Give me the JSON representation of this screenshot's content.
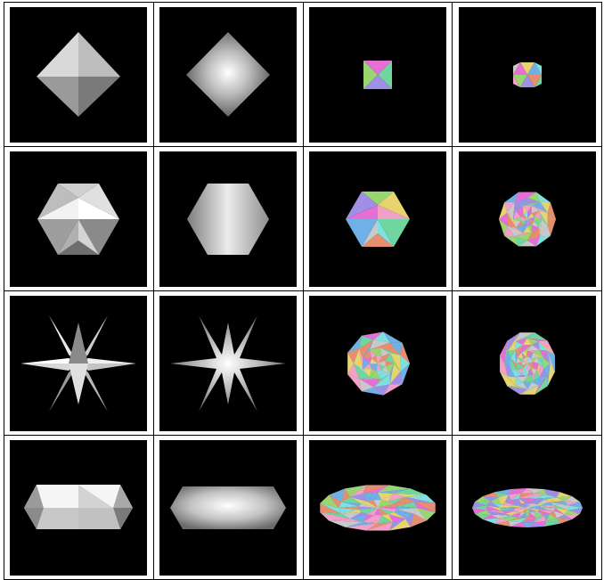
{
  "grid": {
    "rows": 4,
    "cols": 4,
    "background": "#000000",
    "cell_border": "#000000"
  },
  "rows": [
    {
      "cells": [
        {
          "shape": "octahedron",
          "style": "flat-gray"
        },
        {
          "shape": "octahedron",
          "style": "smooth-gray"
        },
        {
          "shape": "octahedron-small",
          "style": "colored-flat"
        },
        {
          "shape": "subdivided-small",
          "style": "colored-faceted"
        }
      ]
    },
    {
      "cells": [
        {
          "shape": "icosahedron",
          "style": "flat-gray"
        },
        {
          "shape": "icosahedron",
          "style": "smooth-gray"
        },
        {
          "shape": "icosahedron",
          "style": "colored-faceted"
        },
        {
          "shape": "geodesic-sphere",
          "style": "colored-faceted"
        }
      ]
    },
    {
      "cells": [
        {
          "shape": "star",
          "style": "flat-gray"
        },
        {
          "shape": "star",
          "style": "smooth-gray"
        },
        {
          "shape": "rounded-polyhedron",
          "style": "colored-faceted"
        },
        {
          "shape": "rounded-polyhedron-fine",
          "style": "colored-faceted"
        }
      ]
    },
    {
      "cells": [
        {
          "shape": "flattened-prism",
          "style": "flat-gray"
        },
        {
          "shape": "flattened-prism",
          "style": "smooth-gray"
        },
        {
          "shape": "torus-like",
          "style": "colored-faceted"
        },
        {
          "shape": "torus-like-fine",
          "style": "colored-faceted"
        }
      ]
    }
  ],
  "palette": [
    "#e66fd6",
    "#6fd6a0",
    "#a08fe6",
    "#9ad66f",
    "#e6d46f",
    "#6fb0e6",
    "#e68f6f",
    "#c9c9c9",
    "#f2a0c8",
    "#7fe0e0"
  ]
}
